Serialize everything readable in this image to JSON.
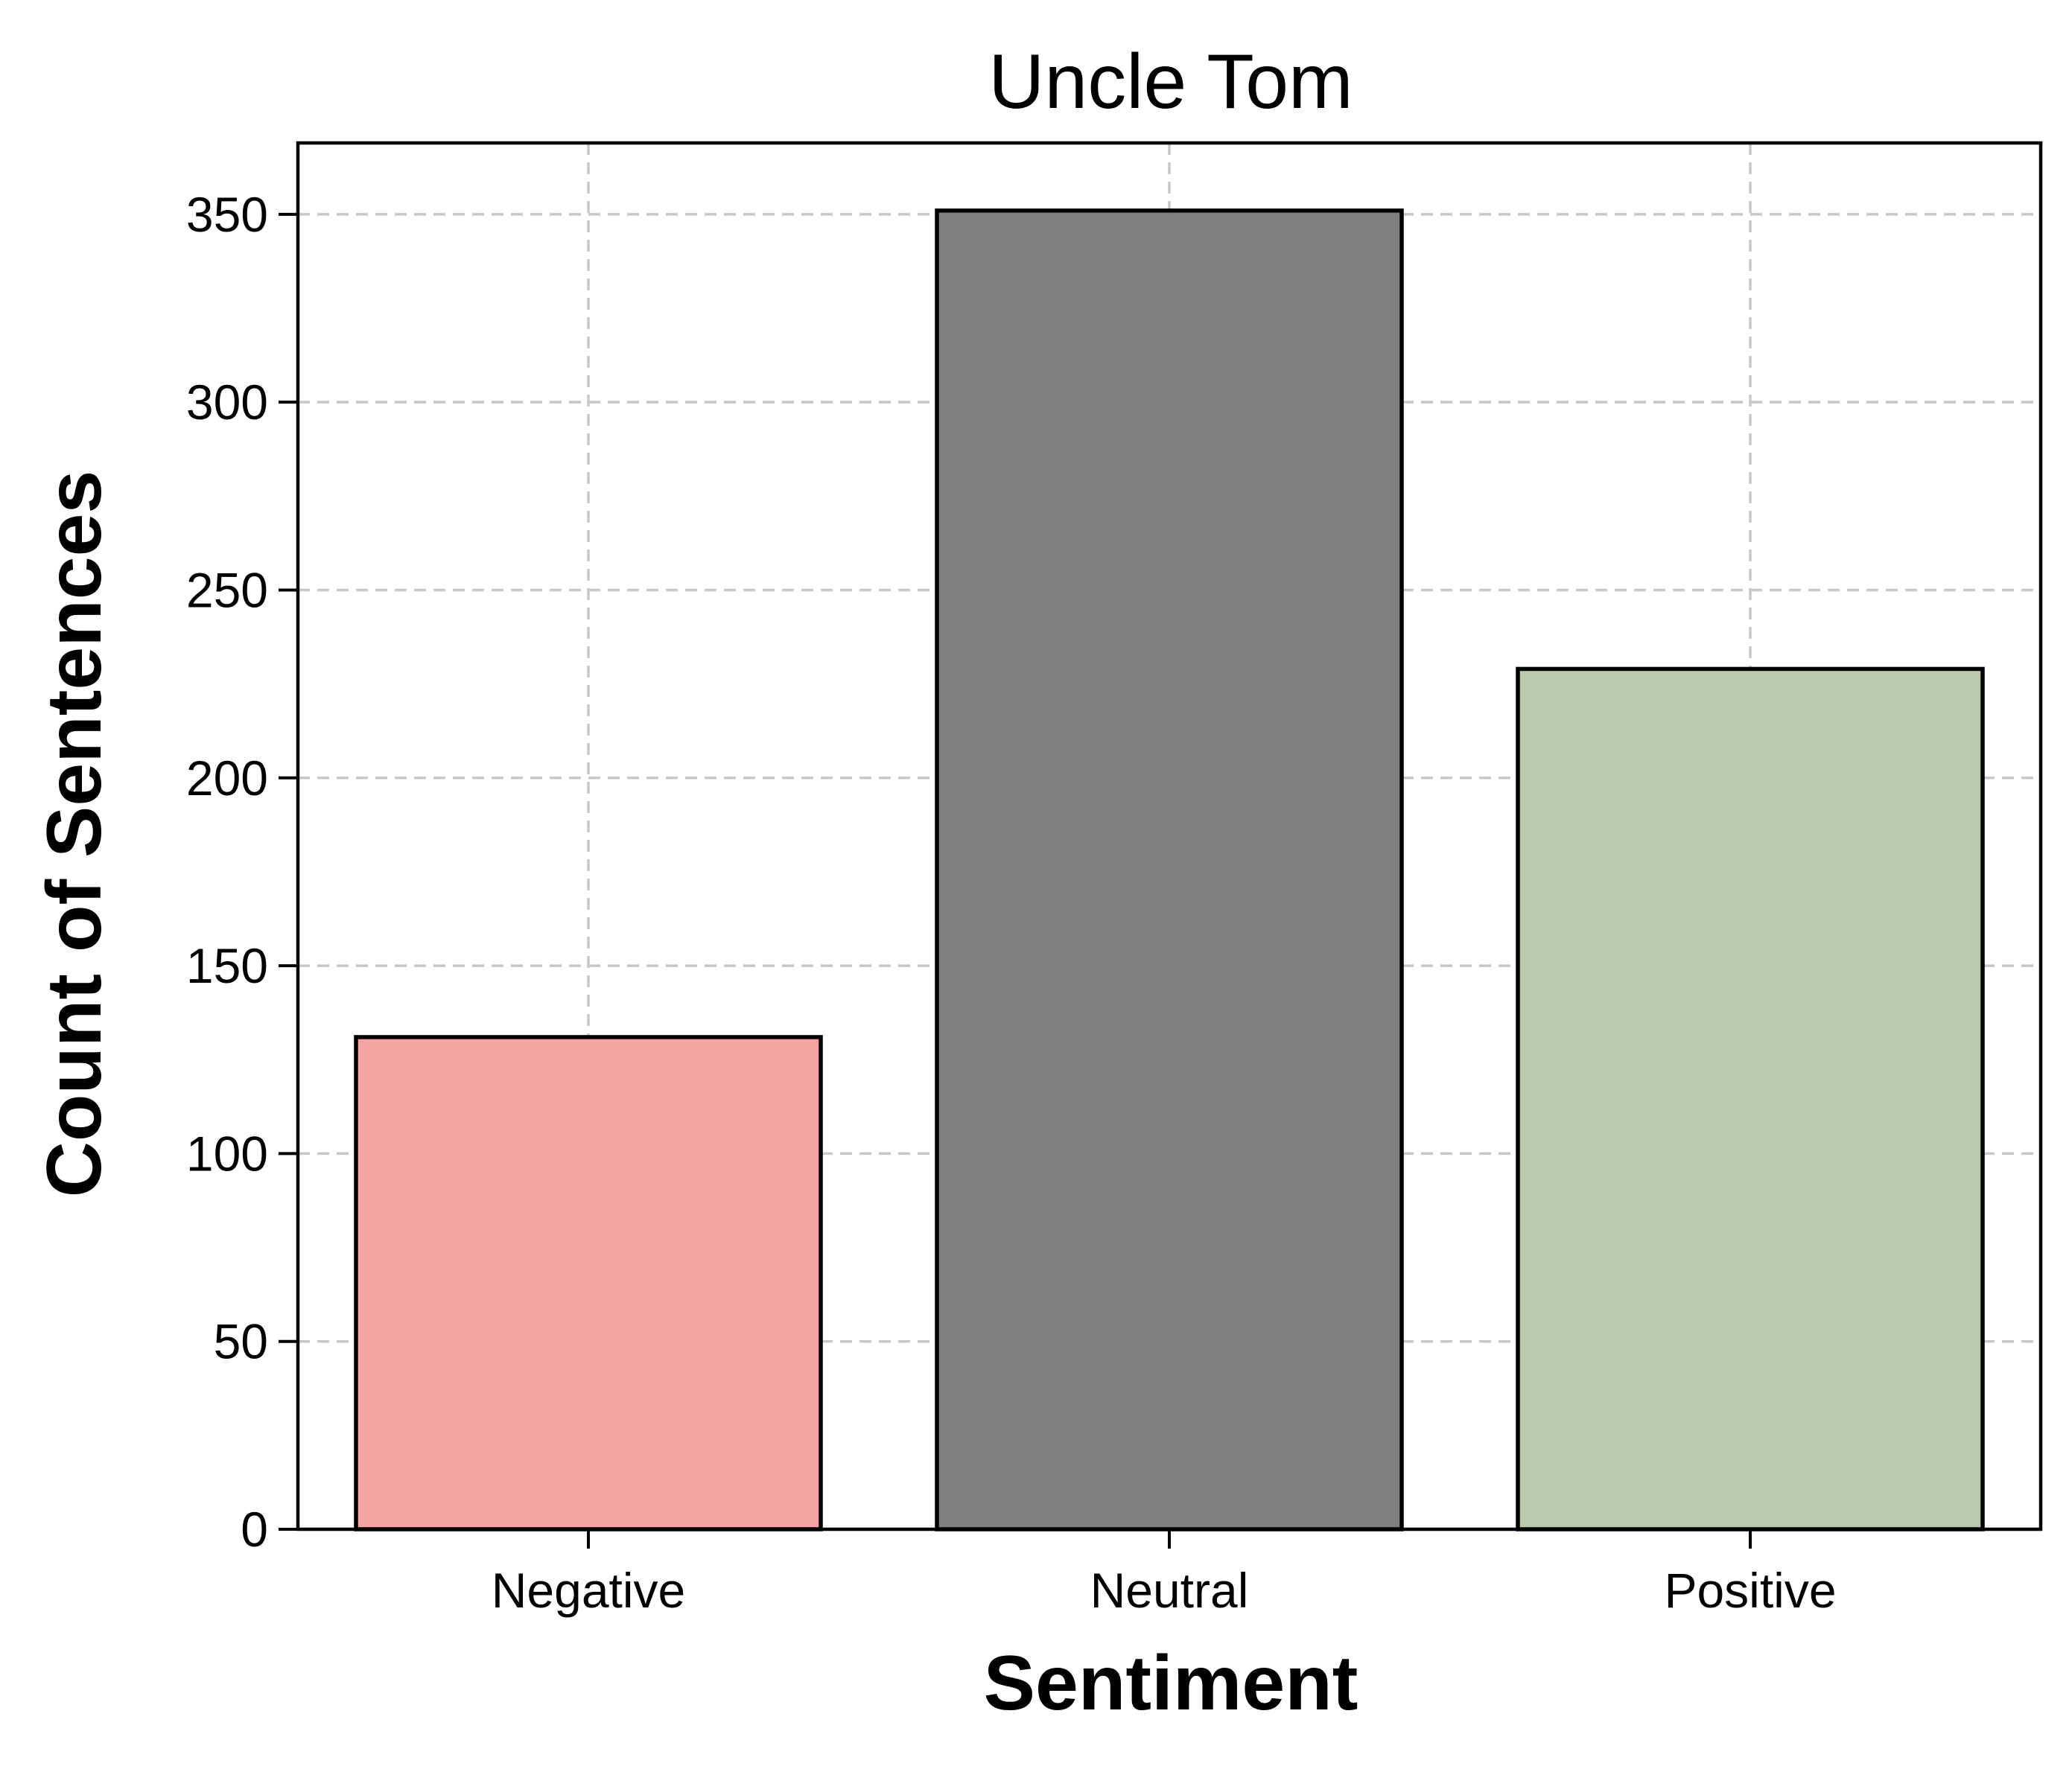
{
  "chart_data": {
    "type": "bar",
    "title": "Uncle Tom",
    "xlabel": "Sentiment",
    "ylabel": "Count of Sentences",
    "categories": [
      "Negative",
      "Neutral",
      "Positive"
    ],
    "values": [
      131,
      351,
      229
    ],
    "colors": [
      "#f5a3a3",
      "#808080",
      "#bacbab"
    ],
    "ylim": [
      0,
      369
    ],
    "yticks": [
      0,
      50,
      100,
      150,
      200,
      250,
      300,
      350
    ],
    "grid": true,
    "legend": "none"
  }
}
